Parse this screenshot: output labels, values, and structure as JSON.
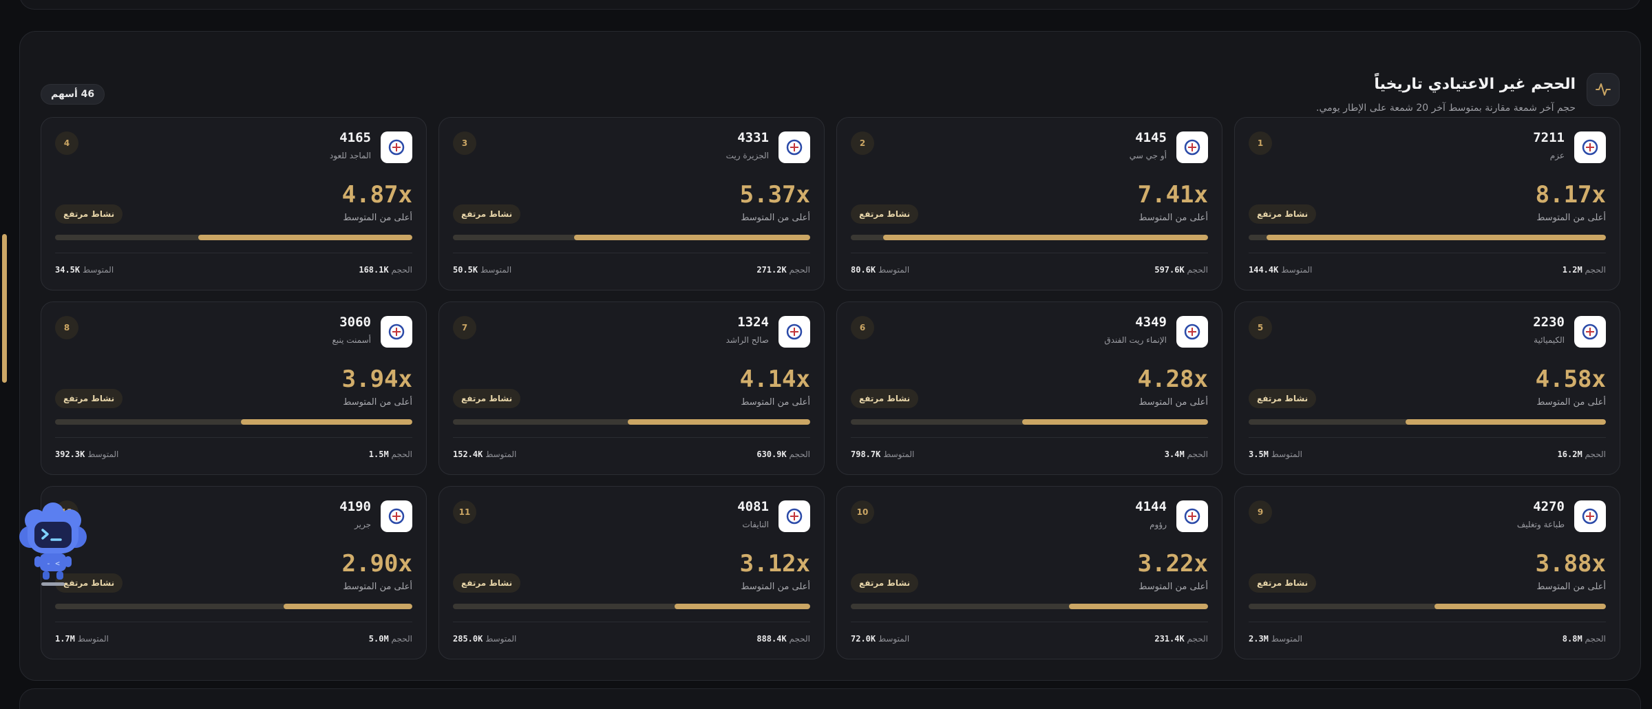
{
  "panel": {
    "title": "الحجم غير الاعتيادي تاريخياً",
    "subtitle": "حجم آخر شمعة مقارنة بمتوسط آخر 20 شمعة على الإطار يومي.",
    "count_badge": "46 أسهم",
    "header_icon": "activity-pulse-icon"
  },
  "labels": {
    "above_avg": "أعلى من المتوسط",
    "activity": "نشاط مرتفع",
    "volume": "الحجم",
    "average": "المتوسط"
  },
  "colors": {
    "accent": "#cba664",
    "card_bg": "#1a1b20",
    "page_bg": "#0e0f12"
  },
  "stocks": [
    {
      "rank": "1",
      "code": "7211",
      "name": "عزم",
      "multiple": "8.17x",
      "bar_fraction": 0.95,
      "volume": "1.2M",
      "average": "144.4K",
      "logo_icon": "azm-logo"
    },
    {
      "rank": "2",
      "code": "4145",
      "name": "أو جي سي",
      "multiple": "7.41x",
      "bar_fraction": 0.91,
      "volume": "597.6K",
      "average": "80.6K",
      "logo_icon": "ogc-logo"
    },
    {
      "rank": "3",
      "code": "4331",
      "name": "الجزيرة ريت",
      "multiple": "5.37x",
      "bar_fraction": 0.66,
      "volume": "271.2K",
      "average": "50.5K",
      "logo_icon": "aljazira-reit-logo"
    },
    {
      "rank": "4",
      "code": "4165",
      "name": "الماجد للعود",
      "multiple": "4.87x",
      "bar_fraction": 0.6,
      "volume": "168.1K",
      "average": "34.5K",
      "logo_icon": "almajed-oud-logo"
    },
    {
      "rank": "5",
      "code": "2230",
      "name": "الكيميائية",
      "multiple": "4.58x",
      "bar_fraction": 0.56,
      "volume": "16.2M",
      "average": "3.5M",
      "logo_icon": "chemical-logo"
    },
    {
      "rank": "6",
      "code": "4349",
      "name": "الإنماء ريت الفندق",
      "multiple": "4.28x",
      "bar_fraction": 0.52,
      "volume": "3.4M",
      "average": "798.7K",
      "logo_icon": "alinma-hospitality-reit-logo"
    },
    {
      "rank": "7",
      "code": "1324",
      "name": "صالح الراشد",
      "multiple": "4.14x",
      "bar_fraction": 0.51,
      "volume": "630.9K",
      "average": "152.4K",
      "logo_icon": "saleh-alrashed-logo"
    },
    {
      "rank": "8",
      "code": "3060",
      "name": "أسمنت ينبع",
      "multiple": "3.94x",
      "bar_fraction": 0.48,
      "volume": "1.5M",
      "average": "392.3K",
      "logo_icon": "yanbu-cement-logo"
    },
    {
      "rank": "9",
      "code": "4270",
      "name": "طباعة وتغليف",
      "multiple": "3.88x",
      "bar_fraction": 0.48,
      "volume": "8.8M",
      "average": "2.3M",
      "logo_icon": "printing-packaging-logo"
    },
    {
      "rank": "10",
      "code": "4144",
      "name": "رؤوم",
      "multiple": "3.22x",
      "bar_fraction": 0.39,
      "volume": "231.4K",
      "average": "72.0K",
      "logo_icon": "raoom-logo"
    },
    {
      "rank": "11",
      "code": "4081",
      "name": "النايفات",
      "multiple": "3.12x",
      "bar_fraction": 0.38,
      "volume": "888.4K",
      "average": "285.0K",
      "logo_icon": "nayifat-logo"
    },
    {
      "rank": "12",
      "code": "4190",
      "name": "جرير",
      "multiple": "2.90x",
      "bar_fraction": 0.36,
      "volume": "5.0M",
      "average": "1.7M",
      "logo_icon": "jarir-logo"
    }
  ]
}
